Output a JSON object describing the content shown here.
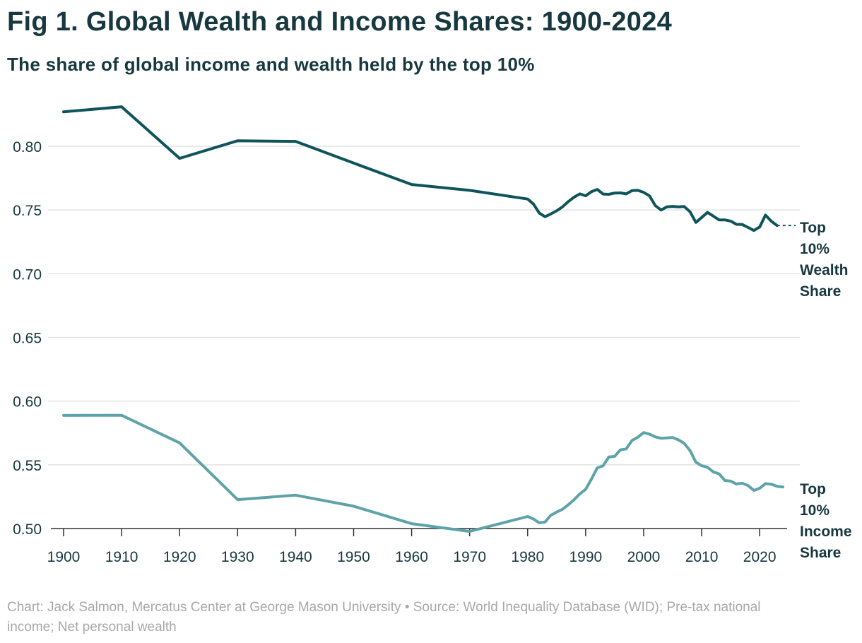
{
  "header": {
    "title": "Fig 1. Global Wealth and Income Shares: 1900-2024",
    "subtitle": "The share of global income and wealth held by the top 10%"
  },
  "footer": {
    "line1": "Chart: Jack Salmon, Mercatus Center at George Mason University • Source: World Inequality Database (WID); Pre-tax national",
    "line2": "income; Net personal wealth"
  },
  "colors": {
    "wealth": "#0e545a",
    "income": "#5ea3a8",
    "grid": "#e3e3e3",
    "tick_text": "#17383f",
    "axis": "#333333"
  },
  "chart_data": {
    "type": "line",
    "title": "Fig 1. Global Wealth and Income Shares: 1900-2024",
    "subtitle": "The share of global income and wealth held by the top 10%",
    "xlabel": "",
    "ylabel": "",
    "xlim": [
      1900,
      2024
    ],
    "ylim": [
      0.5,
      0.83
    ],
    "grid": true,
    "x_ticks": [
      1900,
      1910,
      1920,
      1930,
      1940,
      1950,
      1960,
      1970,
      1980,
      1990,
      2000,
      2010,
      2020
    ],
    "y_ticks": [
      0.5,
      0.55,
      0.6,
      0.65,
      0.7,
      0.75,
      0.8
    ],
    "y_tick_labels": [
      "0.50",
      "0.55",
      "0.60",
      "0.65",
      "0.70",
      "0.75",
      "0.80"
    ],
    "series": [
      {
        "name": "Top 10% Wealth Share",
        "label_lines": [
          "Top",
          "10%",
          "Wealth",
          "Share"
        ],
        "color": "#0e545a",
        "x": [
          1900,
          1910,
          1920,
          1930,
          1940,
          1950,
          1960,
          1970,
          1980,
          1981,
          1982,
          1983,
          1984,
          1985,
          1986,
          1987,
          1988,
          1989,
          1990,
          1991,
          1992,
          1993,
          1994,
          1995,
          1996,
          1997,
          1998,
          1999,
          2000,
          2001,
          2002,
          2003,
          2004,
          2005,
          2006,
          2007,
          2008,
          2009,
          2010,
          2011,
          2012,
          2013,
          2014,
          2015,
          2016,
          2017,
          2018,
          2019,
          2020,
          2021,
          2022,
          2023
        ],
        "values": [
          0.827,
          0.831,
          0.7905,
          0.8043,
          0.8038,
          0.7868,
          0.77,
          0.7654,
          0.7586,
          0.7547,
          0.7476,
          0.7447,
          0.7469,
          0.7493,
          0.7524,
          0.7565,
          0.7601,
          0.7626,
          0.7611,
          0.7644,
          0.7661,
          0.7625,
          0.7623,
          0.7633,
          0.7634,
          0.7626,
          0.7652,
          0.7654,
          0.7638,
          0.7611,
          0.7535,
          0.75,
          0.7524,
          0.7528,
          0.7524,
          0.7527,
          0.7486,
          0.7402,
          0.7441,
          0.7481,
          0.7452,
          0.7422,
          0.7422,
          0.7413,
          0.7387,
          0.7386,
          0.7363,
          0.7339,
          0.7367,
          0.746,
          0.7412,
          0.7378
        ],
        "projection_to": 2024
      },
      {
        "name": "Top 10% Income Share",
        "label_lines": [
          "Top",
          "10%",
          "Income",
          "Share"
        ],
        "color": "#5ea3a8",
        "x": [
          1900,
          1910,
          1920,
          1930,
          1940,
          1950,
          1960,
          1970,
          1980,
          1981,
          1982,
          1983,
          1984,
          1985,
          1986,
          1987,
          1988,
          1989,
          1990,
          1991,
          1992,
          1993,
          1994,
          1995,
          1996,
          1997,
          1998,
          1999,
          2000,
          2001,
          2002,
          2003,
          2004,
          2005,
          2006,
          2007,
          2008,
          2009,
          2010,
          2011,
          2012,
          2013,
          2014,
          2015,
          2016,
          2017,
          2018,
          2019,
          2020,
          2021,
          2022,
          2023,
          2024
        ],
        "values": [
          0.5888,
          0.5889,
          0.5672,
          0.5227,
          0.5262,
          0.5175,
          0.5038,
          0.4977,
          0.5094,
          0.5075,
          0.5045,
          0.5051,
          0.5104,
          0.5129,
          0.5151,
          0.5186,
          0.5226,
          0.5272,
          0.5308,
          0.5388,
          0.5476,
          0.5492,
          0.5562,
          0.5566,
          0.5618,
          0.5625,
          0.5691,
          0.5717,
          0.5753,
          0.5741,
          0.5719,
          0.5708,
          0.5711,
          0.5715,
          0.5696,
          0.5668,
          0.5612,
          0.552,
          0.5493,
          0.5481,
          0.5445,
          0.5429,
          0.5377,
          0.5372,
          0.535,
          0.5356,
          0.5337,
          0.5299,
          0.5316,
          0.5352,
          0.5348,
          0.5331,
          0.5326
        ]
      }
    ]
  }
}
